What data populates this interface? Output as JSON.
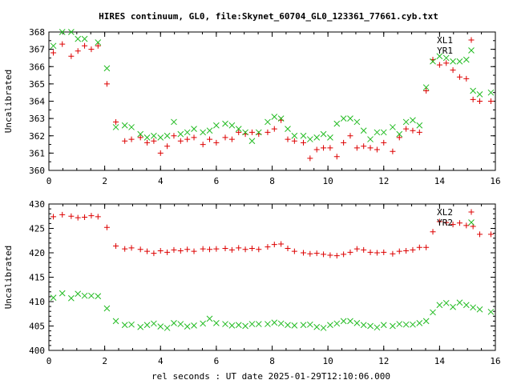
{
  "title": "HIRES continuum, GL0, file:Skynet_60704_GL0_123361_77661.cyb.txt",
  "xlabel": "rel seconds : UT date 2025-01-29T12:10:06.000",
  "colors": {
    "XL": "#dd0000",
    "YR": "#22bb22",
    "axis": "#000000"
  },
  "chart_data": [
    {
      "type": "scatter",
      "title": "",
      "xlabel": "",
      "ylabel": "Uncalibrated",
      "xlim": [
        0,
        16
      ],
      "ylim": [
        360,
        368
      ],
      "xticks": [
        "0",
        "2",
        "4",
        "6",
        "8",
        "10",
        "12",
        "14",
        "16"
      ],
      "yticks": [
        "360",
        "361",
        "362",
        "363",
        "364",
        "365",
        "366",
        "367",
        "368"
      ],
      "legend": "top-right",
      "grid": false,
      "series": [
        {
          "name": "XL1",
          "marker": "plus",
          "x": [
            0.16,
            0.48,
            0.8,
            1.04,
            1.28,
            1.52,
            1.76,
            2.08,
            2.4,
            2.72,
            2.96,
            3.28,
            3.52,
            3.76,
            4.0,
            4.24,
            4.48,
            4.72,
            4.96,
            5.2,
            5.52,
            5.76,
            6.0,
            6.32,
            6.56,
            6.8,
            7.04,
            7.28,
            7.52,
            7.84,
            8.08,
            8.32,
            8.56,
            8.8,
            9.12,
            9.36,
            9.6,
            9.84,
            10.08,
            10.32,
            10.56,
            10.8,
            11.04,
            11.28,
            11.52,
            11.76,
            12.0,
            12.32,
            12.56,
            12.8,
            13.04,
            13.28,
            13.52,
            13.76,
            14.0,
            14.24,
            14.48,
            14.72,
            14.96,
            15.2,
            15.44,
            15.84
          ],
          "y": [
            366.8,
            367.3,
            366.6,
            366.9,
            367.2,
            367.0,
            367.2,
            365.0,
            362.8,
            361.7,
            361.8,
            361.9,
            361.6,
            361.7,
            361.0,
            361.4,
            362.0,
            361.7,
            361.8,
            361.9,
            361.5,
            361.8,
            361.6,
            361.9,
            361.8,
            362.2,
            362.1,
            362.2,
            362.1,
            362.2,
            362.4,
            362.9,
            361.8,
            361.7,
            361.6,
            360.7,
            361.2,
            361.3,
            361.3,
            360.8,
            361.6,
            362.0,
            361.3,
            361.4,
            361.3,
            361.2,
            361.6,
            361.1,
            361.9,
            362.4,
            362.3,
            362.2,
            364.6,
            366.4,
            366.1,
            366.2,
            365.8,
            365.4,
            365.3,
            364.1,
            364.0,
            364.0
          ]
        },
        {
          "name": "YR1",
          "marker": "cross",
          "x": [
            0.16,
            0.48,
            0.8,
            1.04,
            1.28,
            1.52,
            1.76,
            2.08,
            2.4,
            2.72,
            2.96,
            3.28,
            3.52,
            3.76,
            4.0,
            4.24,
            4.48,
            4.72,
            4.96,
            5.2,
            5.52,
            5.76,
            6.0,
            6.32,
            6.56,
            6.8,
            7.04,
            7.28,
            7.52,
            7.84,
            8.08,
            8.32,
            8.56,
            8.8,
            9.12,
            9.36,
            9.6,
            9.84,
            10.08,
            10.32,
            10.56,
            10.8,
            11.04,
            11.28,
            11.52,
            11.76,
            12.0,
            12.32,
            12.56,
            12.8,
            13.04,
            13.28,
            13.52,
            13.76,
            14.0,
            14.24,
            14.48,
            14.72,
            14.96,
            15.2,
            15.44,
            15.84
          ],
          "y": [
            367.2,
            368.0,
            368.0,
            367.6,
            367.6,
            368.1,
            367.4,
            365.9,
            362.5,
            362.6,
            362.5,
            362.1,
            361.9,
            362.0,
            361.9,
            362.0,
            362.8,
            362.1,
            362.2,
            362.4,
            362.2,
            362.3,
            362.6,
            362.7,
            362.6,
            362.4,
            362.2,
            361.7,
            362.2,
            362.8,
            363.1,
            363.0,
            362.4,
            362.0,
            362.0,
            361.8,
            361.9,
            362.1,
            361.9,
            362.7,
            363.0,
            363.0,
            362.8,
            362.3,
            361.8,
            362.2,
            362.2,
            362.5,
            362.1,
            362.8,
            362.9,
            362.6,
            364.8,
            366.3,
            366.6,
            366.5,
            366.3,
            366.3,
            366.4,
            364.6,
            364.4,
            364.5
          ]
        }
      ]
    },
    {
      "type": "scatter",
      "title": "",
      "xlabel": "rel seconds : UT date 2025-01-29T12:10:06.000",
      "ylabel": "Uncalibrated",
      "xlim": [
        0,
        16
      ],
      "ylim": [
        400,
        430
      ],
      "xticks": [
        "0",
        "2",
        "4",
        "6",
        "8",
        "10",
        "12",
        "14",
        "16"
      ],
      "yticks": [
        "400",
        "405",
        "410",
        "415",
        "420",
        "425",
        "430"
      ],
      "legend": "top-right",
      "grid": false,
      "series": [
        {
          "name": "XL2",
          "marker": "plus",
          "x": [
            0.16,
            0.48,
            0.8,
            1.04,
            1.28,
            1.52,
            1.76,
            2.08,
            2.4,
            2.72,
            2.96,
            3.28,
            3.52,
            3.76,
            4.0,
            4.24,
            4.48,
            4.72,
            4.96,
            5.2,
            5.52,
            5.76,
            6.0,
            6.32,
            6.56,
            6.8,
            7.04,
            7.28,
            7.52,
            7.84,
            8.08,
            8.32,
            8.56,
            8.8,
            9.12,
            9.36,
            9.6,
            9.84,
            10.08,
            10.32,
            10.56,
            10.8,
            11.04,
            11.28,
            11.52,
            11.76,
            12.0,
            12.32,
            12.56,
            12.8,
            13.04,
            13.28,
            13.52,
            13.76,
            14.0,
            14.24,
            14.48,
            14.72,
            14.96,
            15.2,
            15.44,
            15.84
          ],
          "y": [
            427.4,
            427.8,
            427.5,
            427.2,
            427.3,
            427.6,
            427.4,
            425.2,
            421.4,
            420.8,
            421.0,
            420.7,
            420.3,
            419.9,
            420.4,
            420.1,
            420.6,
            420.4,
            420.7,
            420.3,
            420.8,
            420.7,
            420.8,
            420.9,
            420.6,
            421.0,
            420.7,
            420.9,
            420.7,
            421.2,
            421.7,
            421.8,
            420.9,
            420.3,
            420.0,
            419.8,
            419.9,
            419.7,
            419.5,
            419.4,
            419.7,
            420.1,
            420.8,
            420.6,
            420.1,
            420.0,
            420.1,
            419.8,
            420.3,
            420.4,
            420.6,
            421.1,
            421.1,
            424.3,
            426.4,
            426.2,
            425.8,
            426.1,
            425.6,
            425.4,
            423.8,
            423.8
          ]
        },
        {
          "name": "YR2",
          "marker": "cross",
          "x": [
            0.16,
            0.48,
            0.8,
            1.04,
            1.28,
            1.52,
            1.76,
            2.08,
            2.4,
            2.72,
            2.96,
            3.28,
            3.52,
            3.76,
            4.0,
            4.24,
            4.48,
            4.72,
            4.96,
            5.2,
            5.52,
            5.76,
            6.0,
            6.32,
            6.56,
            6.8,
            7.04,
            7.28,
            7.52,
            7.84,
            8.08,
            8.32,
            8.56,
            8.8,
            9.12,
            9.36,
            9.6,
            9.84,
            10.08,
            10.32,
            10.56,
            10.8,
            11.04,
            11.28,
            11.52,
            11.76,
            12.0,
            12.32,
            12.56,
            12.8,
            13.04,
            13.28,
            13.52,
            13.76,
            14.0,
            14.24,
            14.48,
            14.72,
            14.96,
            15.2,
            15.44,
            15.84
          ],
          "y": [
            410.8,
            411.7,
            410.7,
            411.6,
            411.2,
            411.2,
            411.1,
            408.6,
            406.0,
            405.2,
            405.3,
            404.8,
            405.2,
            405.5,
            404.9,
            404.6,
            405.6,
            405.4,
            404.9,
            405.1,
            405.5,
            406.5,
            405.6,
            405.4,
            405.1,
            405.2,
            405.0,
            405.4,
            405.4,
            405.4,
            405.7,
            405.5,
            405.2,
            405.1,
            405.2,
            405.3,
            404.8,
            404.6,
            405.2,
            405.5,
            406.0,
            406.0,
            405.6,
            405.2,
            405.0,
            404.7,
            405.2,
            405.0,
            405.4,
            405.3,
            405.3,
            405.6,
            406.0,
            407.8,
            409.3,
            409.7,
            408.9,
            409.8,
            409.3,
            408.8,
            408.4,
            407.9
          ]
        }
      ]
    }
  ]
}
